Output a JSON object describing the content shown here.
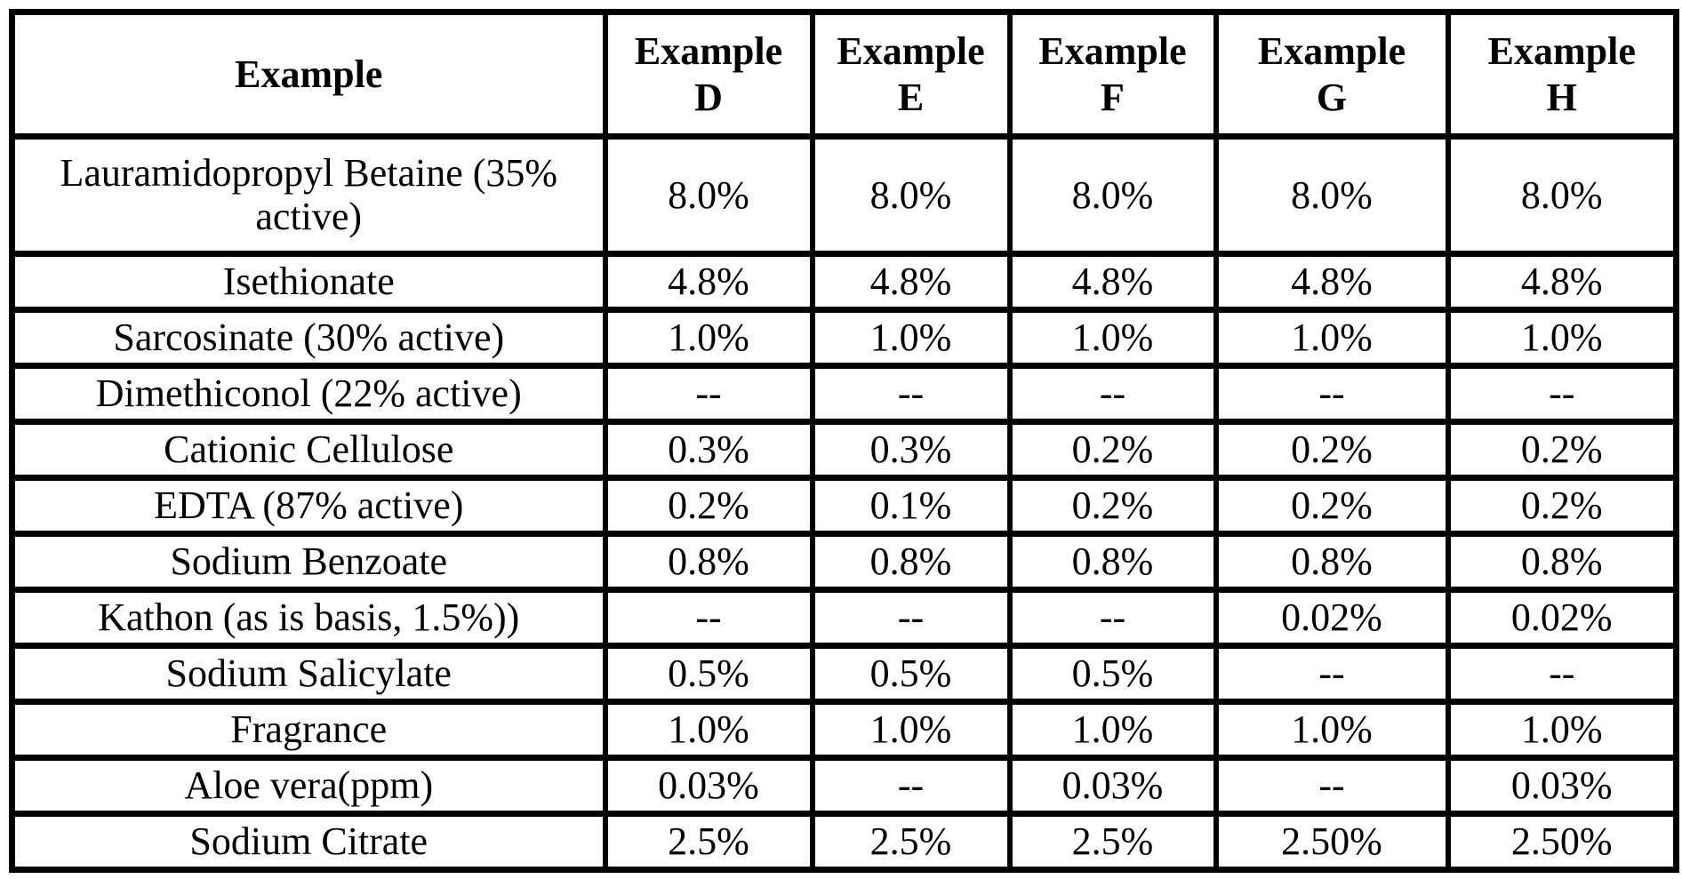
{
  "colors": {
    "background": "#ffffff",
    "border": "#000000",
    "text": "#000000"
  },
  "table": {
    "header": [
      {
        "line1": "Example",
        "line2": ""
      },
      {
        "line1": "Example",
        "line2": "D"
      },
      {
        "line1": "Example",
        "line2": "E"
      },
      {
        "line1": "Example",
        "line2": "F"
      },
      {
        "line1": "Example",
        "line2": "G"
      },
      {
        "line1": "Example",
        "line2": "H"
      }
    ],
    "rows": [
      {
        "label": "Lauramidopropyl Betaine (35% active)",
        "values": [
          "8.0%",
          "8.0%",
          "8.0%",
          "8.0%",
          "8.0%"
        ]
      },
      {
        "label": "Isethionate",
        "values": [
          "4.8%",
          "4.8%",
          "4.8%",
          "4.8%",
          "4.8%"
        ]
      },
      {
        "label": "Sarcosinate (30% active)",
        "values": [
          "1.0%",
          "1.0%",
          "1.0%",
          "1.0%",
          "1.0%"
        ]
      },
      {
        "label": "Dimethiconol (22% active)",
        "values": [
          "--",
          "--",
          "--",
          "--",
          "--"
        ]
      },
      {
        "label": "Cationic Cellulose",
        "values": [
          "0.3%",
          "0.3%",
          "0.2%",
          "0.2%",
          "0.2%"
        ]
      },
      {
        "label": "EDTA (87% active)",
        "values": [
          "0.2%",
          "0.1%",
          "0.2%",
          "0.2%",
          "0.2%"
        ]
      },
      {
        "label": "Sodium Benzoate",
        "values": [
          "0.8%",
          "0.8%",
          "0.8%",
          "0.8%",
          "0.8%"
        ]
      },
      {
        "label": "Kathon (as is basis, 1.5%))",
        "values": [
          "--",
          "--",
          "--",
          "0.02%",
          "0.02%"
        ]
      },
      {
        "label": "Sodium Salicylate",
        "values": [
          "0.5%",
          "0.5%",
          "0.5%",
          "--",
          "--"
        ]
      },
      {
        "label": "Fragrance",
        "values": [
          "1.0%",
          "1.0%",
          "1.0%",
          "1.0%",
          "1.0%"
        ]
      },
      {
        "label": "Aloe vera(ppm)",
        "values": [
          "0.03%",
          "--",
          "0.03%",
          "--",
          "0.03%"
        ]
      },
      {
        "label": "Sodium Citrate",
        "values": [
          "2.5%",
          "2.5%",
          "2.5%",
          "2.50%",
          "2.50%"
        ]
      }
    ]
  }
}
